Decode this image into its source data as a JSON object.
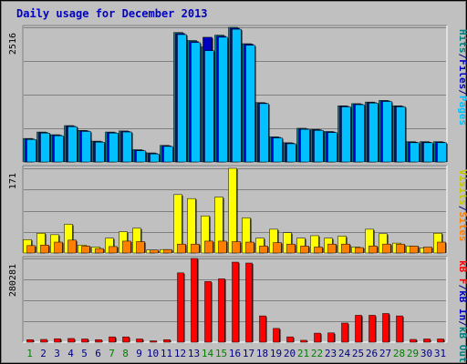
{
  "chart_data": {
    "type": "bar",
    "title": "Daily usage for December 2013",
    "days": [
      "1",
      "2",
      "3",
      "4",
      "5",
      "6",
      "7",
      "8",
      "9",
      "10",
      "11",
      "12",
      "13",
      "14",
      "15",
      "16",
      "17",
      "18",
      "19",
      "20",
      "21",
      "22",
      "23",
      "24",
      "25",
      "26",
      "27",
      "28",
      "29",
      "30",
      "31"
    ],
    "weekend_days": [
      "1",
      "7",
      "8",
      "14",
      "15",
      "21",
      "22",
      "28",
      "29"
    ],
    "panels": [
      {
        "id": "hits-files-pages",
        "ymax": 2516,
        "ymax_label": "2516",
        "legend": [
          {
            "text": "Hits",
            "color": "#008080"
          },
          {
            "text": "/",
            "color": "#000080"
          },
          {
            "text": "Files",
            "color": "#0000c0"
          },
          {
            "text": "/",
            "color": "#000080"
          },
          {
            "text": "Pages",
            "color": "#00c0ff"
          }
        ],
        "series": [
          {
            "name": "Hits",
            "color": "#008080",
            "values": [
              440,
              560,
              510,
              680,
              590,
              390,
              560,
              580,
              230,
              170,
              310,
              2420,
              2270,
              2150,
              2370,
              2516,
              2210,
              1110,
              470,
              360,
              630,
              610,
              570,
              1050,
              1090,
              1120,
              1150,
              1050,
              380,
              380,
              380
            ]
          },
          {
            "name": "Files",
            "color": "#0000c0",
            "values": [
              430,
              550,
              500,
              670,
              580,
              380,
              550,
              570,
              220,
              160,
              300,
              2400,
              2250,
              2330,
              2350,
              2500,
              2200,
              1100,
              460,
              350,
              620,
              600,
              560,
              1040,
              1080,
              1110,
              1140,
              1040,
              370,
              370,
              370
            ]
          },
          {
            "name": "Pages",
            "color": "#00c0ff",
            "values": [
              420,
              540,
              490,
              660,
              570,
              370,
              540,
              560,
              210,
              150,
              290,
              2380,
              2230,
              2080,
              2330,
              2480,
              2180,
              1090,
              450,
              340,
              610,
              590,
              550,
              1030,
              1070,
              1100,
              1130,
              1030,
              360,
              360,
              360
            ]
          }
        ]
      },
      {
        "id": "visits-sites",
        "ymax": 171,
        "ymax_label": "171",
        "legend": [
          {
            "text": "Visits",
            "color": "#c8c800"
          },
          {
            "text": "/",
            "color": "#000080"
          },
          {
            "text": "Sites",
            "color": "#ff8000"
          }
        ],
        "series": [
          {
            "name": "Visits",
            "color": "#ffff00",
            "values": [
              27,
              40,
              37,
              58,
              16,
              12,
              30,
              43,
              50,
              6,
              7,
              118,
              110,
              75,
              113,
              171,
              71,
              30,
              48,
              41,
              30,
              35,
              30,
              34,
              12,
              48,
              39,
              20,
              14,
              10,
              40
            ]
          },
          {
            "name": "Sites",
            "color": "#ff8000",
            "values": [
              15,
              16,
              22,
              26,
              14,
              9,
              13,
              24,
              23,
              6,
              7,
              18,
              18,
              24,
              24,
              23,
              22,
              14,
              21,
              18,
              14,
              12,
              18,
              18,
              11,
              14,
              18,
              18,
              14,
              12,
              22
            ]
          }
        ]
      },
      {
        "id": "kbytes",
        "ymax": 280281,
        "ymax_label": "280281",
        "legend": [
          {
            "text": "kB F",
            "color": "#ff0000"
          },
          {
            "text": "/",
            "color": "#000080"
          },
          {
            "text": "kB In",
            "color": "#0000c0"
          },
          {
            "text": "/",
            "color": "#000080"
          },
          {
            "text": "kB Out",
            "color": "#008080"
          }
        ],
        "series": [
          {
            "name": "kB F",
            "color": "#ff0000",
            "values": [
              8400,
              9200,
              11500,
              12300,
              10700,
              8400,
              17700,
              17700,
              10700,
              4400,
              8400,
              232000,
              280281,
              203000,
              212000,
              268000,
              265000,
              88000,
              46000,
              17800,
              6300,
              30200,
              31000,
              64000,
              90000,
              90000,
              96000,
              88000,
              9200,
              10700,
              10700
            ]
          }
        ]
      }
    ]
  }
}
